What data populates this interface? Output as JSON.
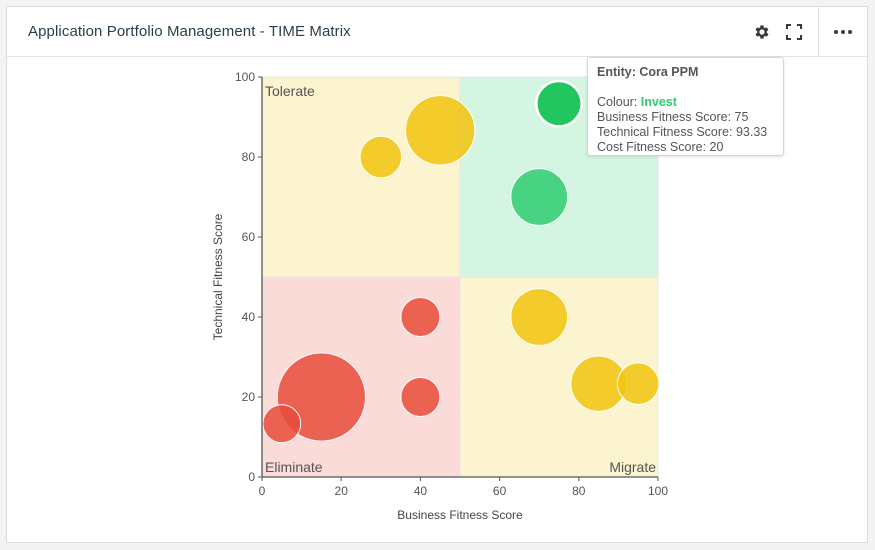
{
  "panel": {
    "title": "Application Portfolio Management - TIME Matrix"
  },
  "icons": {
    "settings": "gear-icon",
    "fullscreen": "fullscreen-icon",
    "more": "more-icon"
  },
  "colors": {
    "tolerate_bg": "#fcf3cf",
    "invest_bg": "#d5f5e3",
    "eliminate_bg": "#fadbd8",
    "migrate_bg": "#fcf3cf",
    "yellow": "#f1c40f",
    "green": "#2ecc71",
    "red": "#e74c3c",
    "highlight_green": "#22c55e"
  },
  "tooltip": {
    "entity_label": "Entity: Cora PPM",
    "colour_label": "Colour:",
    "colour_value": "Invest",
    "business": "Business Fitness Score: 75",
    "technical": "Technical Fitness Score: 93.33",
    "cost": "Cost Fitness Score: 20"
  },
  "chart_data": {
    "type": "scatter",
    "subtype": "bubble",
    "title": "",
    "xlabel": "Business Fitness Score",
    "ylabel": "Technical Fitness Score",
    "xlim": [
      0,
      100
    ],
    "ylim": [
      0,
      100
    ],
    "xticks": [
      0,
      20,
      40,
      60,
      80,
      100
    ],
    "yticks": [
      0,
      20,
      40,
      60,
      80,
      100
    ],
    "quadrants": [
      {
        "name": "Tolerate",
        "x": [
          0,
          50
        ],
        "y": [
          50,
          100
        ],
        "color": "#fcf3cf",
        "label_pos": "top-left"
      },
      {
        "name": "Invest",
        "x": [
          50,
          100
        ],
        "y": [
          50,
          100
        ],
        "color": "#d5f5e3",
        "label_pos": "none"
      },
      {
        "name": "Eliminate",
        "x": [
          0,
          50
        ],
        "y": [
          0,
          50
        ],
        "color": "#fadbd8",
        "label_pos": "bottom-left"
      },
      {
        "name": "Migrate",
        "x": [
          50,
          100
        ],
        "y": [
          0,
          50
        ],
        "color": "#fcf3cf",
        "label_pos": "bottom-right"
      }
    ],
    "points": [
      {
        "x": 45,
        "y": 86.67,
        "size": 5.5,
        "colour": "Tolerate"
      },
      {
        "x": 30,
        "y": 80,
        "size": 3.3,
        "colour": "Tolerate"
      },
      {
        "x": 75,
        "y": 93.33,
        "size": 3.6,
        "colour": "Invest",
        "highlighted": true
      },
      {
        "x": 70,
        "y": 70,
        "size": 4.5,
        "colour": "Invest"
      },
      {
        "x": 40,
        "y": 40,
        "size": 3.1,
        "colour": "Eliminate"
      },
      {
        "x": 40,
        "y": 20,
        "size": 3.1,
        "colour": "Eliminate"
      },
      {
        "x": 15,
        "y": 20,
        "size": 7.0,
        "colour": "Eliminate"
      },
      {
        "x": 5,
        "y": 13.33,
        "size": 3.0,
        "colour": "Eliminate"
      },
      {
        "x": 70,
        "y": 40,
        "size": 4.5,
        "colour": "Migrate"
      },
      {
        "x": 85,
        "y": 23.33,
        "size": 4.4,
        "colour": "Migrate"
      },
      {
        "x": 95,
        "y": 23.33,
        "size": 3.3,
        "colour": "Migrate"
      }
    ]
  }
}
